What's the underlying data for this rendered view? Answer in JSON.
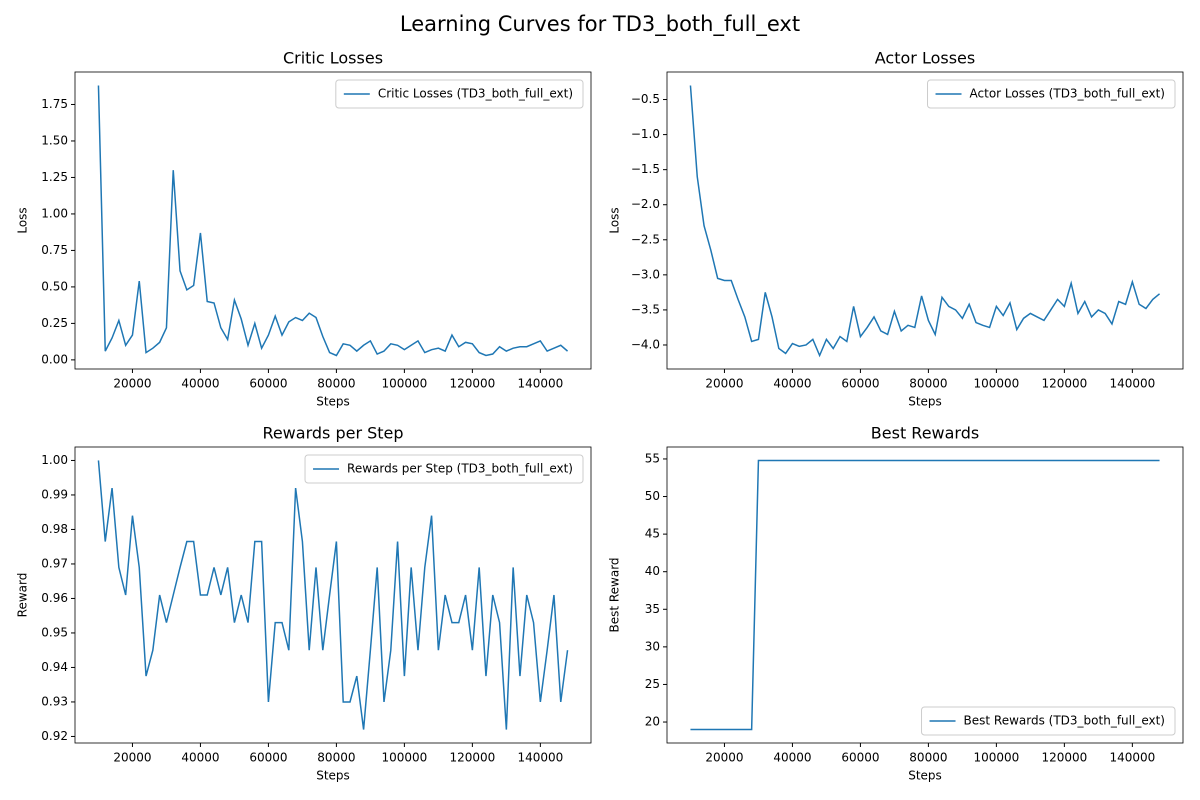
{
  "title": "Learning Curves for TD3_both_full_ext",
  "chart_data": [
    {
      "type": "line",
      "title": "Critic Losses",
      "xlabel": "Steps",
      "ylabel": "Loss",
      "legend": "upper right",
      "x": [
        10000,
        12000,
        14000,
        16000,
        18000,
        20000,
        22000,
        24000,
        26000,
        28000,
        30000,
        32000,
        34000,
        36000,
        38000,
        40000,
        42000,
        44000,
        46000,
        48000,
        50000,
        52000,
        54000,
        56000,
        58000,
        60000,
        62000,
        64000,
        66000,
        68000,
        70000,
        72000,
        74000,
        76000,
        78000,
        80000,
        82000,
        84000,
        86000,
        88000,
        90000,
        92000,
        94000,
        96000,
        98000,
        100000,
        102000,
        104000,
        106000,
        108000,
        110000,
        112000,
        114000,
        116000,
        118000,
        120000,
        122000,
        124000,
        126000,
        128000,
        130000,
        132000,
        134000,
        136000,
        138000,
        140000,
        142000,
        144000,
        146000,
        148000
      ],
      "series": [
        {
          "name": "Critic Losses (TD3_both_full_ext)",
          "color": "#1f77b4",
          "values": [
            1.88,
            0.06,
            0.15,
            0.27,
            0.1,
            0.17,
            0.54,
            0.05,
            0.08,
            0.12,
            0.22,
            1.3,
            0.61,
            0.48,
            0.51,
            0.87,
            0.4,
            0.39,
            0.22,
            0.14,
            0.41,
            0.28,
            0.1,
            0.25,
            0.08,
            0.17,
            0.3,
            0.17,
            0.26,
            0.29,
            0.27,
            0.32,
            0.29,
            0.16,
            0.05,
            0.03,
            0.11,
            0.1,
            0.06,
            0.1,
            0.13,
            0.04,
            0.06,
            0.11,
            0.1,
            0.07,
            0.1,
            0.13,
            0.05,
            0.07,
            0.08,
            0.06,
            0.17,
            0.09,
            0.12,
            0.11,
            0.05,
            0.03,
            0.04,
            0.09,
            0.06,
            0.08,
            0.09,
            0.09,
            0.11,
            0.13,
            0.06,
            0.08,
            0.1,
            0.06
          ]
        }
      ],
      "xlim": [
        3100,
        154900
      ],
      "ylim": [
        -0.0625,
        1.9725
      ],
      "xticks": [
        20000,
        40000,
        60000,
        80000,
        100000,
        120000,
        140000
      ],
      "yticks": [
        {
          "value": 0,
          "label": "0.00"
        },
        {
          "value": 0.25,
          "label": "0.25"
        },
        {
          "value": 0.5,
          "label": "0.50"
        },
        {
          "value": 0.75,
          "label": "0.75"
        },
        {
          "value": 1,
          "label": "1.00"
        },
        {
          "value": 1.25,
          "label": "1.25"
        },
        {
          "value": 1.5,
          "label": "1.50"
        },
        {
          "value": 1.75,
          "label": "1.75"
        }
      ]
    },
    {
      "type": "line",
      "title": "Actor Losses",
      "xlabel": "Steps",
      "ylabel": "Loss",
      "legend": "upper right",
      "x": [
        10000,
        12000,
        14000,
        16000,
        18000,
        20000,
        22000,
        24000,
        26000,
        28000,
        30000,
        32000,
        34000,
        36000,
        38000,
        40000,
        42000,
        44000,
        46000,
        48000,
        50000,
        52000,
        54000,
        56000,
        58000,
        60000,
        62000,
        64000,
        66000,
        68000,
        70000,
        72000,
        74000,
        76000,
        78000,
        80000,
        82000,
        84000,
        86000,
        88000,
        90000,
        92000,
        94000,
        96000,
        98000,
        100000,
        102000,
        104000,
        106000,
        108000,
        110000,
        112000,
        114000,
        116000,
        118000,
        120000,
        122000,
        124000,
        126000,
        128000,
        130000,
        132000,
        134000,
        136000,
        138000,
        140000,
        142000,
        144000,
        146000,
        148000
      ],
      "series": [
        {
          "name": "Actor Losses (TD3_both_full_ext)",
          "color": "#1f77b4",
          "values": [
            -0.3,
            -1.6,
            -2.3,
            -2.65,
            -3.05,
            -3.08,
            -3.08,
            -3.35,
            -3.6,
            -3.95,
            -3.92,
            -3.25,
            -3.6,
            -4.05,
            -4.12,
            -3.98,
            -4.02,
            -4.0,
            -3.92,
            -4.15,
            -3.92,
            -4.05,
            -3.88,
            -3.95,
            -3.45,
            -3.88,
            -3.75,
            -3.6,
            -3.8,
            -3.85,
            -3.52,
            -3.8,
            -3.72,
            -3.75,
            -3.3,
            -3.65,
            -3.85,
            -3.32,
            -3.45,
            -3.5,
            -3.62,
            -3.42,
            -3.68,
            -3.72,
            -3.75,
            -3.45,
            -3.58,
            -3.4,
            -3.78,
            -3.62,
            -3.55,
            -3.6,
            -3.65,
            -3.5,
            -3.35,
            -3.45,
            -3.12,
            -3.55,
            -3.38,
            -3.6,
            -3.5,
            -3.55,
            -3.7,
            -3.38,
            -3.42,
            -3.1,
            -3.42,
            -3.48,
            -3.35,
            -3.27
          ]
        }
      ],
      "xlim": [
        3100,
        154900
      ],
      "ylim": [
        -4.3425,
        -0.1075
      ],
      "xticks": [
        20000,
        40000,
        60000,
        80000,
        100000,
        120000,
        140000
      ],
      "yticks": [
        {
          "value": -4,
          "label": "−4.0"
        },
        {
          "value": -3.5,
          "label": "−3.5"
        },
        {
          "value": -3,
          "label": "−3.0"
        },
        {
          "value": -2.5,
          "label": "−2.5"
        },
        {
          "value": -2,
          "label": "−2.0"
        },
        {
          "value": -1.5,
          "label": "−1.5"
        },
        {
          "value": -1,
          "label": "−1.0"
        },
        {
          "value": -0.5,
          "label": "−0.5"
        }
      ]
    },
    {
      "type": "line",
      "title": "Rewards per Step",
      "xlabel": "Steps",
      "ylabel": "Reward",
      "legend": "upper right",
      "x": [
        10000,
        12000,
        14000,
        16000,
        18000,
        20000,
        22000,
        24000,
        26000,
        28000,
        30000,
        32000,
        34000,
        36000,
        38000,
        40000,
        42000,
        44000,
        46000,
        48000,
        50000,
        52000,
        54000,
        56000,
        58000,
        60000,
        62000,
        64000,
        66000,
        68000,
        70000,
        72000,
        74000,
        76000,
        78000,
        80000,
        82000,
        84000,
        86000,
        88000,
        90000,
        92000,
        94000,
        96000,
        98000,
        100000,
        102000,
        104000,
        106000,
        108000,
        110000,
        112000,
        114000,
        116000,
        118000,
        120000,
        122000,
        124000,
        126000,
        128000,
        130000,
        132000,
        134000,
        136000,
        138000,
        140000,
        142000,
        144000,
        146000,
        148000
      ],
      "series": [
        {
          "name": "Rewards per Step (TD3_both_full_ext)",
          "color": "#1f77b4",
          "values": [
            1.0,
            0.9765,
            0.992,
            0.969,
            0.961,
            0.984,
            0.969,
            0.9375,
            0.945,
            0.961,
            0.953,
            0.961,
            0.969,
            0.9765,
            0.9765,
            0.961,
            0.961,
            0.969,
            0.961,
            0.969,
            0.953,
            0.961,
            0.953,
            0.9765,
            0.9765,
            0.93,
            0.953,
            0.953,
            0.945,
            0.992,
            0.9765,
            0.945,
            0.969,
            0.945,
            0.961,
            0.9765,
            0.93,
            0.93,
            0.9375,
            0.922,
            0.945,
            0.969,
            0.93,
            0.945,
            0.9765,
            0.9375,
            0.969,
            0.945,
            0.969,
            0.984,
            0.945,
            0.961,
            0.953,
            0.953,
            0.961,
            0.945,
            0.969,
            0.9375,
            0.961,
            0.953,
            0.922,
            0.969,
            0.9375,
            0.961,
            0.953,
            0.93,
            0.945,
            0.961,
            0.93,
            0.945
          ]
        }
      ],
      "xlim": [
        3100,
        154900
      ],
      "ylim": [
        0.9181,
        1.0039
      ],
      "xticks": [
        20000,
        40000,
        60000,
        80000,
        100000,
        120000,
        140000
      ],
      "yticks": [
        0.92,
        0.93,
        0.94,
        0.95,
        0.96,
        0.97,
        0.98,
        0.99,
        {
          "value": 1,
          "label": "1.00"
        }
      ]
    },
    {
      "type": "line",
      "title": "Best Rewards",
      "xlabel": "Steps",
      "ylabel": "Best Reward",
      "legend": "lower right",
      "x": [
        10000,
        12000,
        14000,
        16000,
        18000,
        20000,
        22000,
        24000,
        26000,
        28000,
        30000,
        32000,
        34000,
        36000,
        38000,
        40000,
        42000,
        44000,
        46000,
        48000,
        50000,
        52000,
        54000,
        56000,
        58000,
        60000,
        62000,
        64000,
        66000,
        68000,
        70000,
        72000,
        74000,
        76000,
        78000,
        80000,
        82000,
        84000,
        86000,
        88000,
        90000,
        92000,
        94000,
        96000,
        98000,
        100000,
        102000,
        104000,
        106000,
        108000,
        110000,
        112000,
        114000,
        116000,
        118000,
        120000,
        122000,
        124000,
        126000,
        128000,
        130000,
        132000,
        134000,
        136000,
        138000,
        140000,
        142000,
        144000,
        146000,
        148000
      ],
      "series": [
        {
          "name": "Best Rewards (TD3_both_full_ext)",
          "color": "#1f77b4",
          "values": [
            19,
            19,
            19,
            19,
            19,
            19,
            19,
            19,
            19,
            19,
            54.8,
            54.8,
            54.8,
            54.8,
            54.8,
            54.8,
            54.8,
            54.8,
            54.8,
            54.8,
            54.8,
            54.8,
            54.8,
            54.8,
            54.8,
            54.8,
            54.8,
            54.8,
            54.8,
            54.8,
            54.8,
            54.8,
            54.8,
            54.8,
            54.8,
            54.8,
            54.8,
            54.8,
            54.8,
            54.8,
            54.8,
            54.8,
            54.8,
            54.8,
            54.8,
            54.8,
            54.8,
            54.8,
            54.8,
            54.8,
            54.8,
            54.8,
            54.8,
            54.8,
            54.8,
            54.8,
            54.8,
            54.8,
            54.8,
            54.8,
            54.8,
            54.8,
            54.8,
            54.8,
            54.8,
            54.8,
            54.8,
            54.8,
            54.8,
            54.8
          ]
        }
      ],
      "xlim": [
        3100,
        154900
      ],
      "ylim": [
        17.21,
        56.59
      ],
      "xticks": [
        20000,
        40000,
        60000,
        80000,
        100000,
        120000,
        140000
      ],
      "yticks": [
        20,
        25,
        30,
        35,
        40,
        45,
        50,
        55
      ]
    }
  ]
}
